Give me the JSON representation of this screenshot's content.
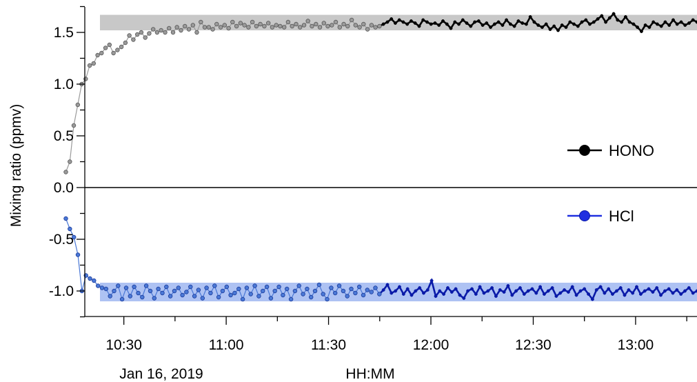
{
  "chart_data": {
    "type": "line",
    "xlabel": "HH:MM",
    "date_label": "Jan 16, 2019",
    "ylabel": "Mixing ratio (ppmv)",
    "xlim": [
      "10:10",
      "13:18"
    ],
    "ylim": [
      -1.25,
      1.75
    ],
    "x_ticks": [
      "10:30",
      "11:00",
      "11:30",
      "12:00",
      "12:30",
      "13:00"
    ],
    "y_ticks": [
      "1.5",
      "1.0",
      "0.5",
      "0.0",
      "-0.5",
      "-1.0"
    ],
    "legend": [
      {
        "name": "HONO",
        "color": "#000000"
      },
      {
        "name": "HCl",
        "color": "#1f2fe0"
      }
    ],
    "bands": [
      {
        "series": "HONO",
        "y_range": [
          1.52,
          1.67
        ],
        "color": "#c8c8c8"
      },
      {
        "series": "HCl",
        "y_range": [
          -1.1,
          -0.92
        ],
        "color": "#aec2f3"
      }
    ],
    "series": [
      {
        "name": "HONO",
        "warmup_end": "11:45",
        "warmup_color": "#9a9a9a",
        "color": "#000000",
        "start": "10:13",
        "end": "13:18",
        "values": [
          0.15,
          0.25,
          0.6,
          0.8,
          1.0,
          1.05,
          1.18,
          1.2,
          1.28,
          1.3,
          1.35,
          1.38,
          1.3,
          1.33,
          1.36,
          1.4,
          1.47,
          1.43,
          1.48,
          1.5,
          1.45,
          1.49,
          1.53,
          1.5,
          1.52,
          1.5,
          1.54,
          1.5,
          1.55,
          1.52,
          1.56,
          1.53,
          1.57,
          1.5,
          1.6,
          1.55,
          1.55,
          1.53,
          1.58,
          1.55,
          1.57,
          1.54,
          1.6,
          1.56,
          1.59,
          1.57,
          1.55,
          1.6,
          1.56,
          1.58,
          1.56,
          1.59,
          1.55,
          1.57,
          1.56,
          1.55,
          1.6,
          1.56,
          1.58,
          1.55,
          1.57,
          1.61,
          1.56,
          1.58,
          1.55,
          1.59,
          1.56,
          1.57,
          1.6,
          1.55,
          1.58,
          1.56,
          1.62,
          1.57,
          1.55,
          1.58,
          1.53,
          1.57,
          1.55,
          1.56,
          1.58,
          1.6,
          1.63,
          1.59,
          1.62,
          1.6,
          1.58,
          1.61,
          1.59,
          1.56,
          1.62,
          1.6,
          1.58,
          1.59,
          1.57,
          1.61,
          1.58,
          1.54,
          1.6,
          1.58,
          1.62,
          1.59,
          1.56,
          1.6,
          1.61,
          1.57,
          1.59,
          1.55,
          1.58,
          1.6,
          1.57,
          1.62,
          1.58,
          1.56,
          1.61,
          1.59,
          1.58,
          1.65,
          1.6,
          1.57,
          1.55,
          1.58,
          1.53,
          1.56,
          1.52,
          1.57,
          1.55,
          1.6,
          1.58,
          1.56,
          1.6,
          1.62,
          1.58,
          1.6,
          1.63,
          1.66,
          1.6,
          1.64,
          1.68,
          1.62,
          1.6,
          1.65,
          1.6,
          1.58,
          1.55,
          1.51,
          1.57,
          1.55,
          1.6,
          1.58,
          1.56,
          1.6,
          1.57,
          1.62,
          1.58,
          1.6,
          1.57,
          1.59,
          1.62,
          1.6
        ]
      },
      {
        "name": "HCl",
        "warmup_end": "11:45",
        "warmup_color": "#4a78d6",
        "color": "#0a1aa8",
        "start": "10:13",
        "end": "13:18",
        "values": [
          -0.3,
          -0.4,
          -0.48,
          -0.65,
          -1.0,
          -0.85,
          -0.88,
          -0.9,
          -0.95,
          -0.97,
          -0.98,
          -1.05,
          -1.0,
          -0.95,
          -1.08,
          -0.97,
          -1.05,
          -0.96,
          -1.02,
          -1.06,
          -0.95,
          -1.0,
          -1.07,
          -0.98,
          -1.02,
          -0.96,
          -1.05,
          -1.0,
          -0.97,
          -1.04,
          -1.01,
          -0.96,
          -1.05,
          -0.99,
          -1.07,
          -0.97,
          -1.02,
          -0.95,
          -1.06,
          -1.0,
          -0.96,
          -1.04,
          -1.02,
          -0.98,
          -1.08,
          -0.97,
          -1.03,
          -0.95,
          -1.05,
          -1.0,
          -0.96,
          -1.07,
          -1.0,
          -0.96,
          -1.04,
          -0.98,
          -1.08,
          -1.0,
          -0.95,
          -1.03,
          -0.98,
          -1.06,
          -1.0,
          -0.94,
          -1.03,
          -1.08,
          -0.97,
          -1.02,
          -0.95,
          -1.0,
          -1.05,
          -0.98,
          -1.02,
          -0.96,
          -1.04,
          -0.99,
          -1.01,
          -0.97,
          -1.03,
          -0.99,
          -0.94,
          -1.02,
          -1.0,
          -0.96,
          -1.03,
          -0.98,
          -1.04,
          -1.0,
          -0.97,
          -1.02,
          -0.99,
          -0.9,
          -1.05,
          -1.0,
          -1.03,
          -0.97,
          -1.01,
          -0.98,
          -1.04,
          -1.07,
          -1.0,
          -0.98,
          -1.03,
          -0.96,
          -1.02,
          -1.0,
          -0.97,
          -1.05,
          -0.99,
          -1.01,
          -0.95,
          -1.04,
          -1.0,
          -0.97,
          -1.03,
          -1.0,
          -0.98,
          -1.02,
          -0.96,
          -1.03,
          -1.0,
          -0.97,
          -1.05,
          -1.02,
          -0.99,
          -1.01,
          -0.96,
          -1.04,
          -1.0,
          -0.98,
          -1.03,
          -1.08,
          -0.99,
          -0.96,
          -1.02,
          -0.98,
          -1.03,
          -1.0,
          -0.97,
          -1.04,
          -0.99,
          -1.02,
          -0.96,
          -1.03,
          -1.0,
          -0.98,
          -1.01,
          -0.97,
          -1.04,
          -1.0,
          -0.98,
          -1.02,
          -0.99,
          -1.03,
          -1.0,
          -0.97,
          -1.02,
          -1.0
        ]
      }
    ]
  }
}
